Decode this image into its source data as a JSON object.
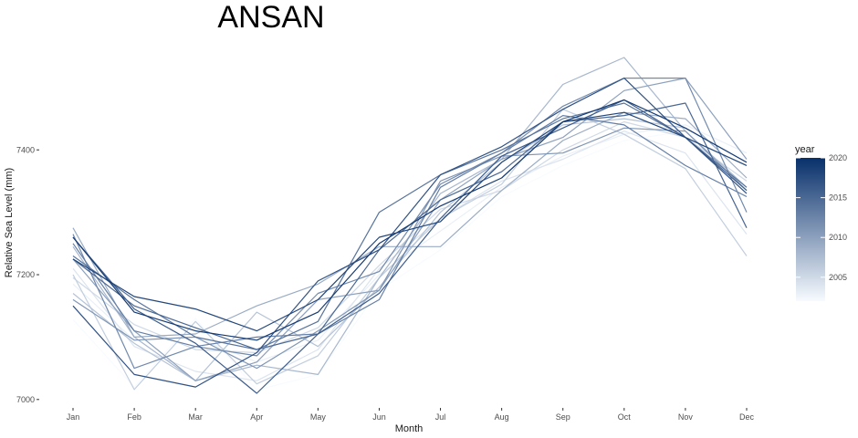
{
  "chart_data": {
    "type": "line",
    "title": "ANSAN",
    "xlabel": "Month",
    "ylabel": "Relative Sea Level (mm)",
    "categories": [
      "Jan",
      "Feb",
      "Mar",
      "Apr",
      "May",
      "Jun",
      "Jul",
      "Aug",
      "Sep",
      "Oct",
      "Nov",
      "Dec"
    ],
    "ylim": [
      6988,
      7570
    ],
    "yticks": [
      7000,
      7200,
      7400
    ],
    "grid": false,
    "legend": {
      "title": "year",
      "placement": "right",
      "type": "colorbar",
      "range": [
        2002,
        2020
      ],
      "ticks": [
        2005,
        2010,
        2015,
        2020
      ],
      "color_low": "#f7fbff",
      "color_high": "#08306b"
    },
    "series": [
      {
        "year": 2002,
        "values": [
          7128,
          7020,
          7130,
          7015,
          7040,
          7175,
          7240,
          7325,
          7375,
          7415,
          7430,
          7385
        ]
      },
      {
        "year": 2003,
        "values": [
          7185,
          7095,
          7100,
          7060,
          7095,
          7200,
          7270,
          7340,
          7390,
          7425,
          7440,
          7395
        ]
      },
      {
        "year": 2004,
        "values": [
          7210,
          7085,
          7045,
          7030,
          7080,
          7210,
          7290,
          7350,
          7385,
          7430,
          7395,
          7265
        ]
      },
      {
        "year": 2005,
        "values": [
          7195,
          7120,
          7080,
          7075,
          7115,
          7215,
          7305,
          7335,
          7400,
          7445,
          7420,
          7350
        ]
      },
      {
        "year": 2006,
        "values": [
          7200,
          7016,
          7125,
          7025,
          7070,
          7195,
          7290,
          7345,
          7465,
          7425,
          7370,
          7230
        ]
      },
      {
        "year": 2007,
        "values": [
          7170,
          7090,
          7030,
          7140,
          7085,
          7180,
          7300,
          7380,
          7440,
          7450,
          7435,
          7380
        ]
      },
      {
        "year": 2008,
        "values": [
          7245,
          7100,
          7030,
          7055,
          7040,
          7195,
          7330,
          7385,
          7505,
          7548,
          7430,
          7340
        ]
      },
      {
        "year": 2009,
        "values": [
          7275,
          7100,
          7105,
          7150,
          7185,
          7245,
          7245,
          7335,
          7415,
          7460,
          7450,
          7355
        ]
      },
      {
        "year": 2010,
        "values": [
          7225,
          7110,
          7030,
          7060,
          7160,
          7175,
          7320,
          7385,
          7420,
          7495,
          7515,
          7385
        ]
      },
      {
        "year": 2011,
        "values": [
          7160,
          7095,
          7100,
          7050,
          7110,
          7175,
          7350,
          7390,
          7395,
          7435,
          7430,
          7335
        ]
      },
      {
        "year": 2012,
        "values": [
          7265,
          7050,
          7085,
          7070,
          7170,
          7205,
          7345,
          7395,
          7470,
          7515,
          7515,
          7300
        ]
      },
      {
        "year": 2013,
        "values": [
          7250,
          7110,
          7085,
          7100,
          7105,
          7160,
          7340,
          7395,
          7455,
          7440,
          7375,
          7325
        ]
      },
      {
        "year": 2014,
        "values": [
          7230,
          7160,
          7100,
          7080,
          7125,
          7300,
          7360,
          7400,
          7450,
          7475,
          7420,
          7340
        ]
      },
      {
        "year": 2015,
        "values": [
          7225,
          7150,
          7115,
          7080,
          7105,
          7240,
          7320,
          7365,
          7445,
          7455,
          7475,
          7275
        ]
      },
      {
        "year": 2016,
        "values": [
          7260,
          7145,
          7090,
          7010,
          7105,
          7170,
          7290,
          7390,
          7435,
          7480,
          7420,
          7335
        ]
      },
      {
        "year": 2017,
        "values": [
          7150,
          7040,
          7020,
          7075,
          7190,
          7240,
          7360,
          7405,
          7465,
          7515,
          7420,
          7330
        ]
      },
      {
        "year": 2018,
        "values": [
          7225,
          7165,
          7145,
          7110,
          7160,
          7260,
          7285,
          7380,
          7445,
          7460,
          7420,
          7375
        ]
      },
      {
        "year": 2019,
        "values": [
          7260,
          7140,
          7110,
          7095,
          7140,
          7250,
          7310,
          7355,
          7445,
          7480,
          7435,
          7380
        ]
      }
    ]
  }
}
